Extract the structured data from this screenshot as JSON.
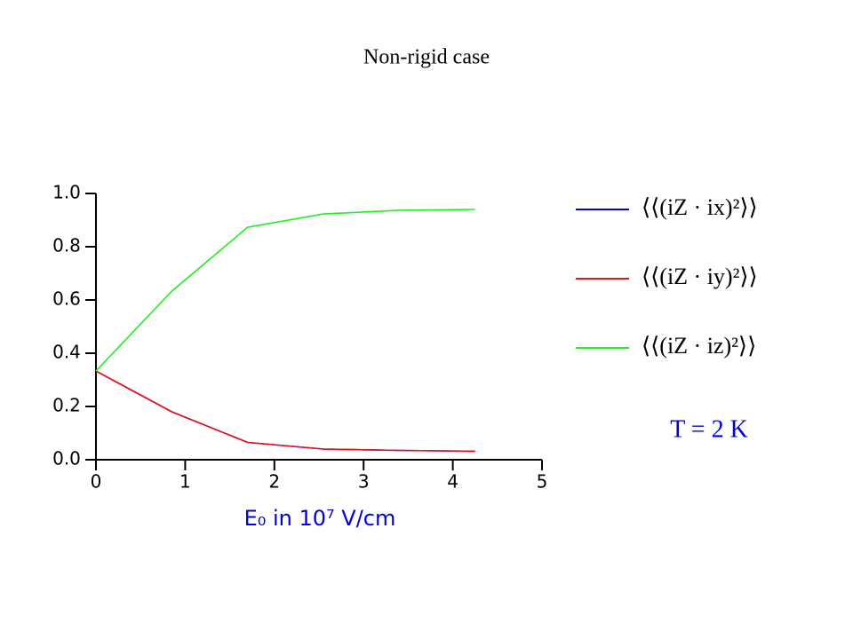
{
  "chart_data": {
    "type": "line",
    "title": "Non-rigid case",
    "x": [
      0,
      0.85,
      1.7,
      2.55,
      3.4,
      4.25
    ],
    "series": [
      {
        "name": "⟨⟨(iZ · ix)²⟩⟩",
        "color": "#0000dd",
        "values": [
          0.333,
          0.18,
          0.065,
          0.04,
          0.035,
          0.032
        ]
      },
      {
        "name": "⟨⟨(iZ · iy)²⟩⟩",
        "color": "#ee1111",
        "values": [
          0.333,
          0.18,
          0.065,
          0.04,
          0.035,
          0.032
        ]
      },
      {
        "name": "⟨⟨(iZ · iz)²⟩⟩",
        "color": "#22ee22",
        "values": [
          0.333,
          0.633,
          0.873,
          0.923,
          0.937,
          0.94
        ]
      }
    ],
    "xlabel": "E₀ in 10⁷ V/cm",
    "annotation": "T = 2 K",
    "xlim": [
      0,
      5
    ],
    "xticks": [
      0,
      1,
      2,
      3,
      4,
      5
    ],
    "ylim": [
      0,
      1
    ],
    "yticks": [
      {
        "value": 0,
        "label": "0.0"
      },
      {
        "value": 0.2,
        "label": "0.2"
      },
      {
        "value": 0.4,
        "label": "0.4"
      },
      {
        "value": 0.6,
        "label": "0.6"
      },
      {
        "value": 0.8,
        "label": "0.8"
      },
      {
        "value": 1,
        "label": "1.0"
      }
    ],
    "grid": false
  }
}
